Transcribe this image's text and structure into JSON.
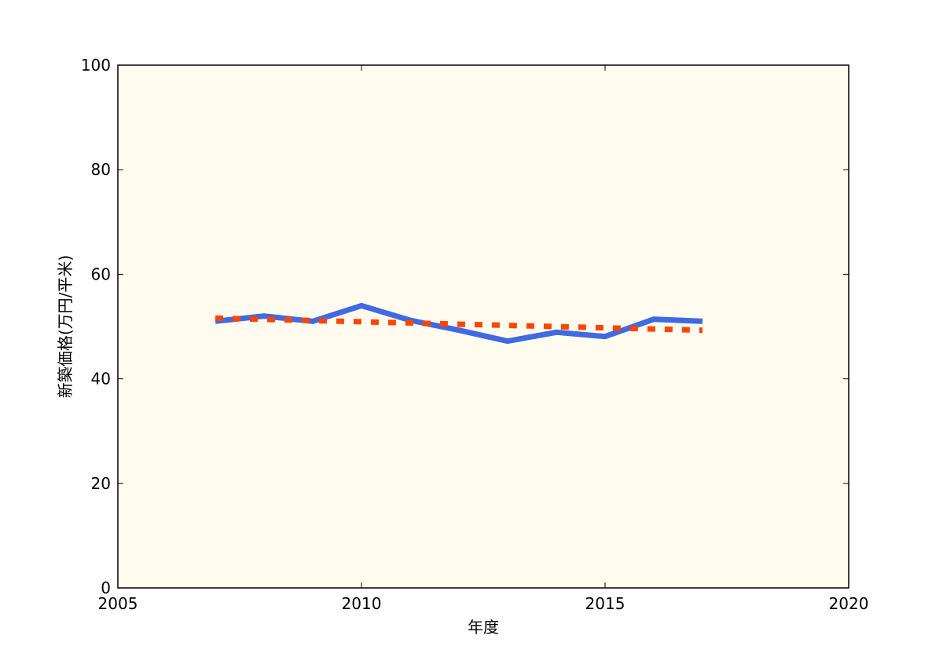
{
  "chart_data": {
    "type": "line",
    "title": "",
    "xlabel": "年度",
    "ylabel": "新築価格(万円/平米)",
    "xlim": [
      2005,
      2020
    ],
    "ylim": [
      0,
      100
    ],
    "xticks": [
      2005,
      2010,
      2015,
      2020
    ],
    "yticks": [
      0,
      20,
      40,
      60,
      80,
      100
    ],
    "grid": false,
    "legend": "none",
    "plot_background": "#fffcef",
    "series": [
      {
        "style": "solid",
        "color": "#4169e1",
        "x": [
          2007,
          2008,
          2009,
          2010,
          2011,
          2012,
          2013,
          2014,
          2015,
          2016,
          2017
        ],
        "y": [
          51.0,
          52.0,
          51.0,
          54.0,
          51.2,
          49.3,
          47.2,
          48.9,
          48.1,
          51.4,
          51.0
        ]
      },
      {
        "style": "dotted",
        "color": "#ff4500",
        "x": [
          2007,
          2017
        ],
        "y": [
          51.6,
          49.3
        ]
      }
    ]
  }
}
